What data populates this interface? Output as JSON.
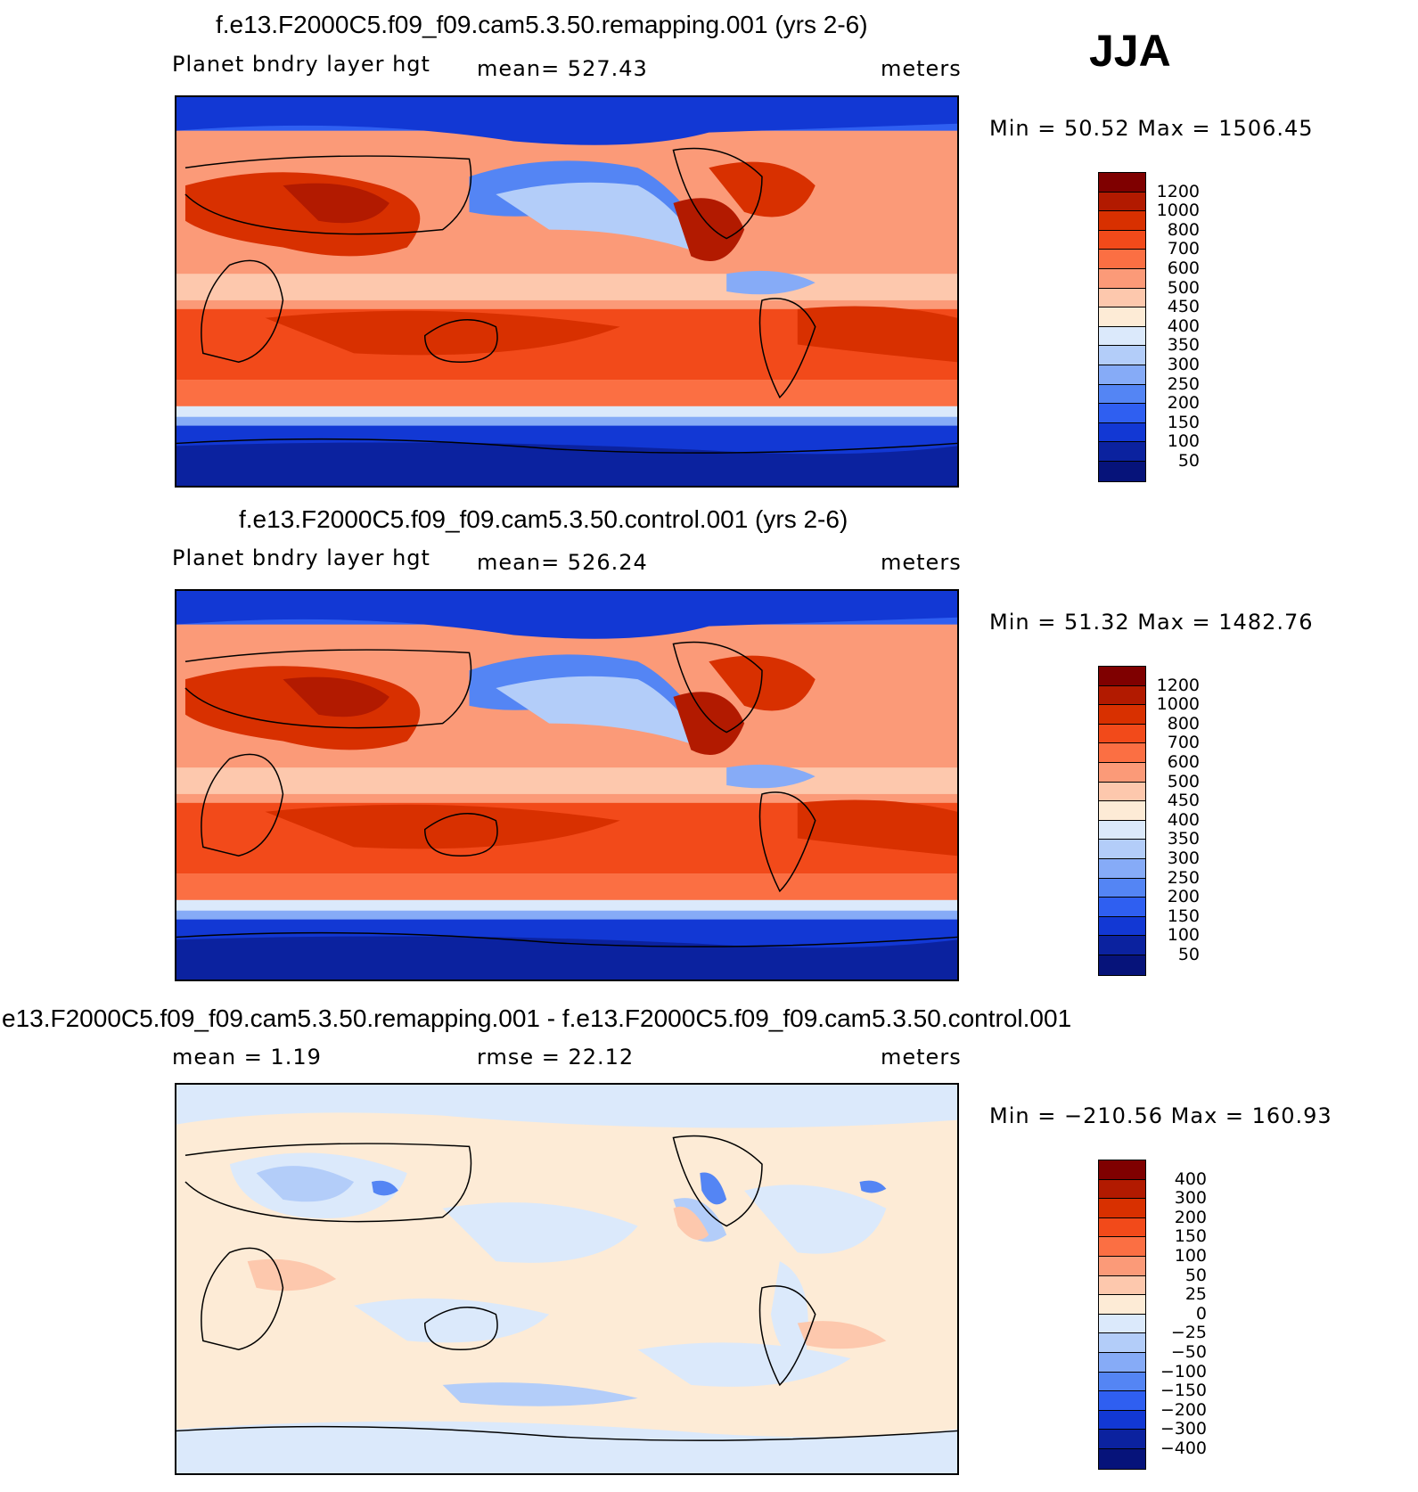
{
  "season": "JJA",
  "panels": [
    {
      "title": "f.e13.F2000C5.f09_f09.cam5.3.50.remapping.001 (yrs 2-6)",
      "left_label": "Planet bndry layer hgt",
      "center_label": "mean=  527.43",
      "units": "meters",
      "minmax": "Min =   50.52  Max  =  1506.45",
      "levels": [
        "1200",
        "1000",
        "800",
        "700",
        "600",
        "500",
        "450",
        "400",
        "350",
        "300",
        "250",
        "200",
        "150",
        "100",
        "50"
      ]
    },
    {
      "title": "f.e13.F2000C5.f09_f09.cam5.3.50.control.001 (yrs 2-6)",
      "left_label": "Planet bndry layer hgt",
      "center_label": "mean=  526.24",
      "units": "meters",
      "minmax": "Min =   51.32  Max  =  1482.76",
      "levels": [
        "1200",
        "1000",
        "800",
        "700",
        "600",
        "500",
        "450",
        "400",
        "350",
        "300",
        "250",
        "200",
        "150",
        "100",
        "50"
      ]
    },
    {
      "title": "e13.F2000C5.f09_f09.cam5.3.50.remapping.001 - f.e13.F2000C5.f09_f09.cam5.3.50.control.001",
      "left_label": "mean  =    1.19",
      "center_label": "rmse  =    22.12",
      "units": "meters",
      "minmax": "Min  =  −210.56  Max  =  160.93",
      "levels": [
        "400",
        "300",
        "200",
        "150",
        "100",
        "50",
        "25",
        "0",
        "−25",
        "−50",
        "−100",
        "−150",
        "−200",
        "−300",
        "−400"
      ]
    }
  ],
  "colors": [
    "#7f0000",
    "#b21a00",
    "#d83000",
    "#f24a1a",
    "#fb6f43",
    "#fb9a78",
    "#fdc8ad",
    "#fdebd6",
    "#dbe9fb",
    "#b3cdf9",
    "#86abf7",
    "#5485f4",
    "#2f5ff1",
    "#1238d4",
    "#0b229f",
    "#06137a"
  ]
}
